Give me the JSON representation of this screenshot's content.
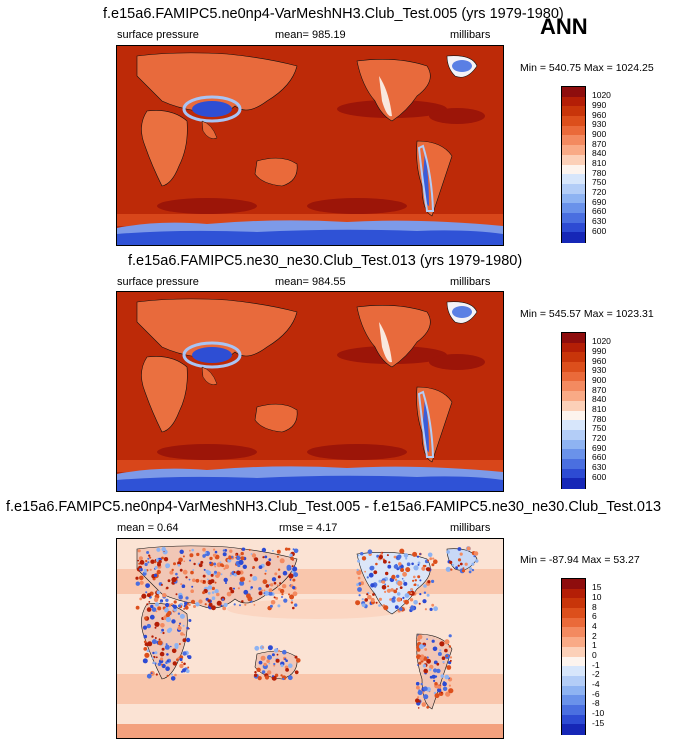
{
  "season": "ANN",
  "panels": [
    {
      "title": "f.e15a6.FAMIPC5.ne0np4-VarMeshNH3.Club_Test.005 (yrs 1979-1980)",
      "left_label": "surface pressure",
      "center_label": "mean= 985.19",
      "units": "millibars",
      "minmax": "Min = 540.75 Max = 1024.25",
      "colorbar": {
        "labels": [
          "1020",
          "990",
          "960",
          "930",
          "900",
          "870",
          "840",
          "810",
          "780",
          "750",
          "720",
          "690",
          "660",
          "630",
          "600"
        ],
        "colors": [
          "#8e0d0d",
          "#b41e06",
          "#c8350a",
          "#dc4f1c",
          "#ea6a3a",
          "#f38a60",
          "#f9aa86",
          "#fcd0b8",
          "#fdf4ee",
          "#d7e6fb",
          "#b3cdf7",
          "#8eb3f2",
          "#6a92ea",
          "#4a6fe0",
          "#2d4bd3",
          "#1627b7"
        ]
      }
    },
    {
      "title": "f.e15a6.FAMIPC5.ne30_ne30.Club_Test.013 (yrs 1979-1980)",
      "left_label": "surface pressure",
      "center_label": "mean= 984.55",
      "units": "millibars",
      "minmax": "Min = 545.57 Max = 1023.31",
      "colorbar": {
        "labels": [
          "1020",
          "990",
          "960",
          "930",
          "900",
          "870",
          "840",
          "810",
          "780",
          "750",
          "720",
          "690",
          "660",
          "630",
          "600"
        ],
        "colors": [
          "#8e0d0d",
          "#b41e06",
          "#c8350a",
          "#dc4f1c",
          "#ea6a3a",
          "#f38a60",
          "#f9aa86",
          "#fcd0b8",
          "#fdf4ee",
          "#d7e6fb",
          "#b3cdf7",
          "#8eb3f2",
          "#6a92ea",
          "#4a6fe0",
          "#2d4bd3",
          "#1627b7"
        ]
      }
    },
    {
      "title": "f.e15a6.FAMIPC5.ne0np4-VarMeshNH3.Club_Test.005 - f.e15a6.FAMIPC5.ne30_ne30.Club_Test.013",
      "left_label": "mean =   0.64",
      "center_label": "rmse =   4.17",
      "units": "millibars",
      "minmax": "Min = -87.94 Max =  53.27",
      "colorbar": {
        "labels": [
          "15",
          "10",
          "8",
          "6",
          "4",
          "2",
          "1",
          "0",
          "-1",
          "-2",
          "-4",
          "-6",
          "-8",
          "-10",
          "-15"
        ],
        "colors": [
          "#8e0d0d",
          "#b41e06",
          "#c8350a",
          "#dc4f1c",
          "#ea6a3a",
          "#f38a60",
          "#f9aa86",
          "#fcd0b8",
          "#fdf4ee",
          "#d7e6fb",
          "#b3cdf7",
          "#8eb3f2",
          "#6a92ea",
          "#4a6fe0",
          "#2d4bd3",
          "#1627b7"
        ]
      }
    }
  ],
  "chart_data": [
    {
      "type": "heatmap",
      "title": "f.e15a6.FAMIPC5.ne0np4-VarMeshNH3.Club_Test.005 (yrs 1979-1980)",
      "variable": "surface pressure",
      "units": "millibars",
      "mean": 985.19,
      "min": 540.75,
      "max": 1024.25,
      "levels": [
        600,
        630,
        660,
        690,
        720,
        750,
        780,
        810,
        840,
        870,
        900,
        930,
        960,
        990,
        1020
      ]
    },
    {
      "type": "heatmap",
      "title": "f.e15a6.FAMIPC5.ne30_ne30.Club_Test.013 (yrs 1979-1980)",
      "variable": "surface pressure",
      "units": "millibars",
      "mean": 984.55,
      "min": 545.57,
      "max": 1023.31,
      "levels": [
        600,
        630,
        660,
        690,
        720,
        750,
        780,
        810,
        840,
        870,
        900,
        930,
        960,
        990,
        1020
      ]
    },
    {
      "type": "heatmap",
      "title": "f.e15a6.FAMIPC5.ne0np4-VarMeshNH3.Club_Test.005 - f.e15a6.FAMIPC5.ne30_ne30.Club_Test.013",
      "units": "millibars",
      "mean": 0.64,
      "rmse": 4.17,
      "min": -87.94,
      "max": 53.27,
      "levels": [
        -15,
        -10,
        -8,
        -6,
        -4,
        -2,
        -1,
        0,
        1,
        2,
        4,
        6,
        8,
        10,
        15
      ]
    }
  ]
}
